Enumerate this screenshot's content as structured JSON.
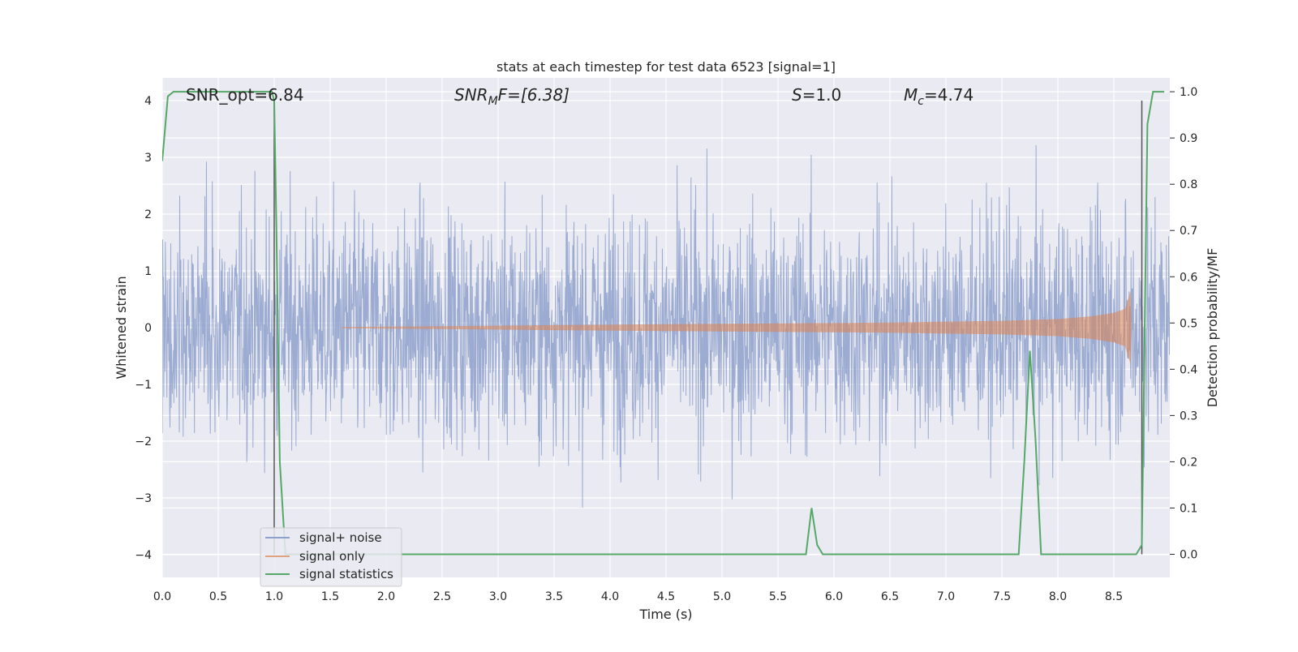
{
  "chart_data": {
    "type": "line",
    "title": "stats at each timestep for test data 6523 [signal=1]",
    "xlabel": "Time (s)",
    "ylabel_left": "Whitened strain",
    "ylabel_right": "Detection probability/MF",
    "xlim": [
      0.0,
      9.0
    ],
    "ylim_left": [
      -4.4,
      4.4
    ],
    "ylim_right": [
      -0.05,
      1.03
    ],
    "x_ticks": [
      "0.0",
      "0.5",
      "1.0",
      "1.5",
      "2.0",
      "2.5",
      "3.0",
      "3.5",
      "4.0",
      "4.5",
      "5.0",
      "5.5",
      "6.0",
      "6.5",
      "7.0",
      "7.5",
      "8.0",
      "8.5"
    ],
    "x_tick_values": [
      0.0,
      0.5,
      1.0,
      1.5,
      2.0,
      2.5,
      3.0,
      3.5,
      4.0,
      4.5,
      5.0,
      5.5,
      6.0,
      6.5,
      7.0,
      7.5,
      8.0,
      8.5
    ],
    "y_ticks_left": [
      "4",
      "3",
      "2",
      "1",
      "0",
      "−1",
      "−2",
      "−3",
      "−4"
    ],
    "y_tick_values_left": [
      4,
      3,
      2,
      1,
      0,
      -1,
      -2,
      -3,
      -4
    ],
    "y_ticks_right": [
      "1.0",
      "0.9",
      "0.8",
      "0.7",
      "0.6",
      "0.5",
      "0.4",
      "0.3",
      "0.2",
      "0.1",
      "0.0"
    ],
    "y_tick_values_right": [
      1.0,
      0.9,
      0.8,
      0.7,
      0.6,
      0.5,
      0.4,
      0.3,
      0.2,
      0.1,
      0.0
    ],
    "grid": true,
    "legend_placement": "lower-left",
    "annotations": {
      "snr_opt": "SNR_opt=6.84",
      "snr_mf_base": "SNR",
      "snr_mf_sub": "M",
      "snr_mf_rest": "F=[6.38]",
      "s_label": "S",
      "s_value": "=1.0",
      "mc_base": "M",
      "mc_sub": "c",
      "mc_value": "=4.74"
    },
    "vertical_lines": [
      1.0,
      8.75
    ],
    "series": [
      {
        "name": "signal+ noise",
        "axis": "left",
        "color": "#8da0cb",
        "noise_sigma": 1.0,
        "noise_clip": [
          -4.0,
          4.0
        ],
        "t_start": 0.0,
        "t_end": 9.0
      },
      {
        "name": "signal only",
        "axis": "left",
        "color": "#dd8452",
        "envelope_t": [
          1.6,
          2.5,
          3.5,
          4.5,
          5.5,
          6.5,
          7.5,
          8.0,
          8.3,
          8.5,
          8.6,
          8.65,
          8.66
        ],
        "envelope_amp": [
          0.01,
          0.025,
          0.045,
          0.06,
          0.075,
          0.09,
          0.12,
          0.15,
          0.2,
          0.26,
          0.33,
          0.65,
          0.0
        ]
      },
      {
        "name": "signal statistics",
        "axis": "right",
        "color": "#55a868",
        "x": [
          0.0,
          0.05,
          0.1,
          0.2,
          0.3,
          0.5,
          0.7,
          0.9,
          0.98,
          1.0,
          1.02,
          1.05,
          1.1,
          1.2,
          5.7,
          5.75,
          5.8,
          5.85,
          5.9,
          6.0,
          7.6,
          7.65,
          7.7,
          7.75,
          7.8,
          7.85,
          7.9,
          8.0,
          8.7,
          8.75,
          8.8,
          8.85,
          8.9,
          8.95
        ],
        "y": [
          0.85,
          0.99,
          1.0,
          1.0,
          1.0,
          1.0,
          1.0,
          1.0,
          1.0,
          0.98,
          0.7,
          0.2,
          0.0,
          0.0,
          0.0,
          0.0,
          0.1,
          0.02,
          0.0,
          0.0,
          0.0,
          0.0,
          0.2,
          0.44,
          0.25,
          0.0,
          0.0,
          0.0,
          0.0,
          0.02,
          0.93,
          1.0,
          1.0,
          1.0
        ]
      }
    ]
  }
}
